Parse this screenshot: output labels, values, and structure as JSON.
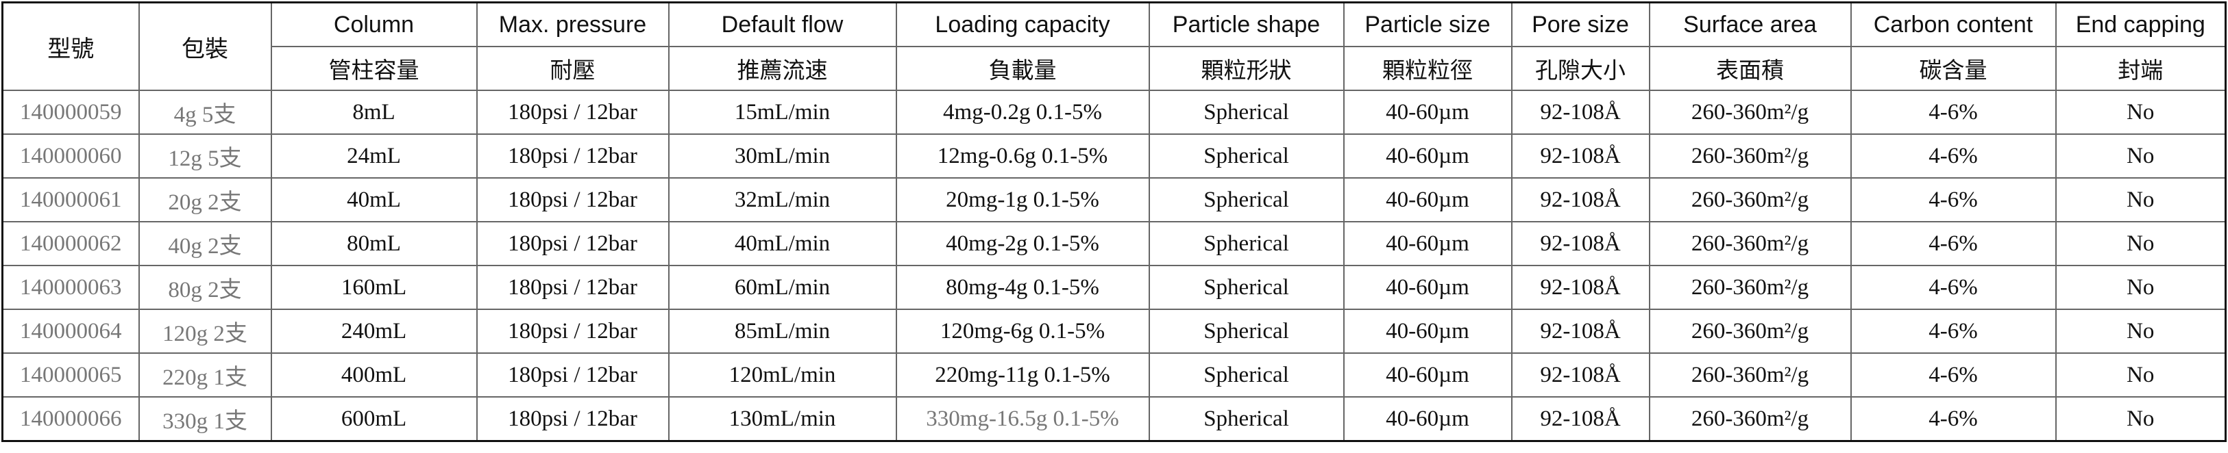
{
  "table": {
    "header": [
      [
        "型號",
        "包裝",
        "Column",
        "Max. pressure",
        "Default flow",
        "Loading capacity",
        "Particle shape",
        "Particle size",
        "Pore size",
        "Surface area",
        "Carbon content",
        "End capping"
      ],
      [
        "管柱容量",
        "耐壓",
        "推薦流速",
        "負載量",
        "顆粒形狀",
        "顆粒粒徑",
        "孔隙大小",
        "表面積",
        "碳含量",
        "封端"
      ]
    ],
    "rows": [
      [
        "140000059",
        "4g 5支",
        "8mL",
        "180psi / 12bar",
        "15mL/min",
        "4mg-0.2g 0.1-5%",
        "Spherical",
        "40-60µm",
        "92-108Å",
        "260-360m²/g",
        "4-6%",
        "No"
      ],
      [
        "140000060",
        "12g 5支",
        "24mL",
        "180psi / 12bar",
        "30mL/min",
        "12mg-0.6g 0.1-5%",
        "Spherical",
        "40-60µm",
        "92-108Å",
        "260-360m²/g",
        "4-6%",
        "No"
      ],
      [
        "140000061",
        "20g 2支",
        "40mL",
        "180psi / 12bar",
        "32mL/min",
        "20mg-1g 0.1-5%",
        "Spherical",
        "40-60µm",
        "92-108Å",
        "260-360m²/g",
        "4-6%",
        "No"
      ],
      [
        "140000062",
        "40g 2支",
        "80mL",
        "180psi / 12bar",
        "40mL/min",
        "40mg-2g 0.1-5%",
        "Spherical",
        "40-60µm",
        "92-108Å",
        "260-360m²/g",
        "4-6%",
        "No"
      ],
      [
        "140000063",
        "80g 2支",
        "160mL",
        "180psi / 12bar",
        "60mL/min",
        "80mg-4g 0.1-5%",
        "Spherical",
        "40-60µm",
        "92-108Å",
        "260-360m²/g",
        "4-6%",
        "No"
      ],
      [
        "140000064",
        "120g 2支",
        "240mL",
        "180psi / 12bar",
        "85mL/min",
        "120mg-6g 0.1-5%",
        "Spherical",
        "40-60µm",
        "92-108Å",
        "260-360m²/g",
        "4-6%",
        "No"
      ],
      [
        "140000065",
        "220g 1支",
        "400mL",
        "180psi / 12bar",
        "120mL/min",
        "220mg-11g 0.1-5%",
        "Spherical",
        "40-60µm",
        "92-108Å",
        "260-360m²/g",
        "4-6%",
        "No"
      ],
      [
        "140000066",
        "330g 1支",
        "600mL",
        "180psi / 12bar",
        "130mL/min",
        "330mg-16.5g 0.1-5%",
        "Spherical",
        "40-60µm",
        "92-108Å",
        "260-360m²/g",
        "4-6%",
        "No"
      ]
    ]
  }
}
